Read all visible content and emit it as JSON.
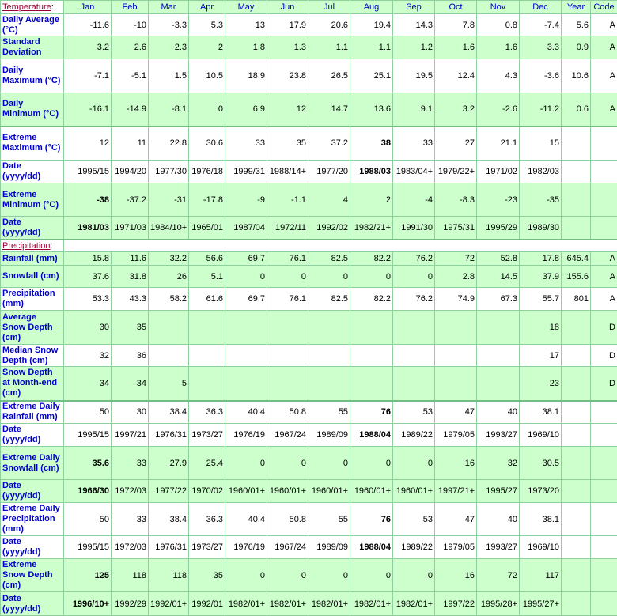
{
  "table": {
    "columns": [
      "Jan",
      "Feb",
      "Mar",
      "Apr",
      "May",
      "Jun",
      "Jul",
      "Aug",
      "Sep",
      "Oct",
      "Nov",
      "Dec",
      "Year",
      "Code"
    ],
    "sections": [
      {
        "title": "Temperature",
        "punctuation": ":",
        "rows": [
          {
            "label": "Daily Average (°C)",
            "shade": false,
            "values": [
              -11.6,
              -10,
              -3.3,
              5.3,
              13,
              17.9,
              20.6,
              19.4,
              14.3,
              7.8,
              0.8,
              -7.4,
              5.6,
              "A"
            ]
          },
          {
            "label": "Standard Deviation",
            "shade": true,
            "values": [
              3.2,
              2.6,
              2.3,
              2,
              1.8,
              1.3,
              1.1,
              1.1,
              1.2,
              1.6,
              1.6,
              3.3,
              0.9,
              "A"
            ]
          },
          {
            "label": "Daily Maximum (°C)",
            "shade": false,
            "values": [
              -7.1,
              -5.1,
              1.5,
              10.5,
              18.9,
              23.8,
              26.5,
              25.1,
              19.5,
              12.4,
              4.3,
              -3.6,
              10.6,
              "A"
            ]
          },
          {
            "label": "Daily Minimum (°C)",
            "shade": true,
            "values": [
              -16.1,
              -14.9,
              -8.1,
              0,
              6.9,
              12,
              14.7,
              13.6,
              9.1,
              3.2,
              -2.6,
              -11.2,
              0.6,
              "A"
            ]
          },
          {
            "label": "Extreme Maximum (°C)",
            "shade": false,
            "bold": 7,
            "values": [
              12,
              11,
              22.8,
              30.6,
              33,
              35,
              37.2,
              38,
              33,
              27,
              21.1,
              15,
              null,
              null
            ]
          },
          {
            "label": "Date (yyyy/dd)",
            "shade": false,
            "bold": 7,
            "values": [
              "1995/15",
              "1994/20",
              "1977/30",
              "1976/18",
              "1999/31",
              "1988/14+",
              "1977/20",
              "1988/03",
              "1983/04+",
              "1979/22+",
              "1971/02",
              "1982/03",
              null,
              null
            ]
          },
          {
            "label": "Extreme Minimum (°C)",
            "shade": true,
            "bold": 0,
            "values": [
              -38,
              -37.2,
              -31,
              -17.8,
              -9,
              -1.1,
              4,
              2,
              -4,
              -8.3,
              -23,
              -35,
              null,
              null
            ]
          },
          {
            "label": "Date (yyyy/dd)",
            "shade": true,
            "bold": 0,
            "values": [
              "1981/03",
              "1971/03",
              "1984/10+",
              "1965/01",
              "1987/04",
              "1972/11",
              "1992/02",
              "1982/21+",
              "1991/30",
              "1975/31",
              "1995/29",
              "1989/30",
              null,
              null
            ]
          }
        ]
      },
      {
        "title": "Precipitation",
        "punctuation": ":",
        "rows": [
          {
            "label": "Rainfall (mm)",
            "shade": true,
            "values": [
              15.8,
              11.6,
              32.2,
              56.6,
              69.7,
              76.1,
              82.5,
              82.2,
              76.2,
              72,
              52.8,
              17.8,
              645.4,
              "A"
            ]
          },
          {
            "label": "Snowfall (cm)",
            "shade": true,
            "values": [
              37.6,
              31.8,
              26,
              5.1,
              0,
              0,
              0,
              0,
              0,
              2.8,
              14.5,
              37.9,
              155.6,
              "A"
            ]
          },
          {
            "label": "Precipitation (mm)",
            "shade": false,
            "values": [
              53.3,
              43.3,
              58.2,
              61.6,
              69.7,
              76.1,
              82.5,
              82.2,
              76.2,
              74.9,
              67.3,
              55.7,
              801,
              "A"
            ]
          },
          {
            "label": "Average Snow Depth (cm)",
            "shade": true,
            "values": [
              30,
              35,
              null,
              null,
              null,
              null,
              null,
              null,
              null,
              null,
              null,
              18,
              null,
              "D"
            ]
          },
          {
            "label": "Median Snow Depth (cm)",
            "shade": false,
            "values": [
              32,
              36,
              null,
              null,
              null,
              null,
              null,
              null,
              null,
              null,
              null,
              17,
              null,
              "D"
            ]
          },
          {
            "label": "Snow Depth at Month-end (cm)",
            "shade": true,
            "values": [
              34,
              34,
              5,
              null,
              null,
              null,
              null,
              null,
              null,
              null,
              null,
              23,
              null,
              "D"
            ]
          },
          {
            "label": "Extreme Daily Rainfall (mm)",
            "shade": false,
            "bold": 7,
            "values": [
              50,
              30,
              38.4,
              36.3,
              40.4,
              50.8,
              55,
              76,
              53,
              47,
              40,
              38.1,
              null,
              null
            ]
          },
          {
            "label": "Date (yyyy/dd)",
            "shade": false,
            "bold": 7,
            "values": [
              "1995/15",
              "1997/21",
              "1976/31",
              "1973/27",
              "1976/19",
              "1967/24",
              "1989/09",
              "1988/04",
              "1989/22",
              "1979/05",
              "1993/27",
              "1969/10",
              null,
              null
            ]
          },
          {
            "label": "Extreme Daily Snowfall (cm)",
            "shade": true,
            "bold": 0,
            "values": [
              35.6,
              33,
              27.9,
              25.4,
              0,
              0,
              0,
              0,
              0,
              16,
              32,
              30.5,
              null,
              null
            ]
          },
          {
            "label": "Date (yyyy/dd)",
            "shade": true,
            "bold": 0,
            "values": [
              "1966/30",
              "1972/03",
              "1977/22",
              "1970/02",
              "1960/01+",
              "1960/01+",
              "1960/01+",
              "1960/01+",
              "1960/01+",
              "1997/21+",
              "1995/27",
              "1973/20",
              null,
              null
            ]
          },
          {
            "label": "Extreme Daily Precipitation (mm)",
            "shade": false,
            "bold": 7,
            "values": [
              50,
              33,
              38.4,
              36.3,
              40.4,
              50.8,
              55,
              76,
              53,
              47,
              40,
              38.1,
              null,
              null
            ]
          },
          {
            "label": "Date (yyyy/dd)",
            "shade": false,
            "bold": 7,
            "values": [
              "1995/15",
              "1972/03",
              "1976/31",
              "1973/27",
              "1976/19",
              "1967/24",
              "1989/09",
              "1988/04",
              "1989/22",
              "1979/05",
              "1993/27",
              "1969/10",
              null,
              null
            ]
          },
          {
            "label": "Extreme Snow Depth (cm)",
            "shade": true,
            "bold": 0,
            "values": [
              125,
              118,
              118,
              35,
              0,
              0,
              0,
              0,
              0,
              16,
              72,
              117,
              null,
              null
            ]
          },
          {
            "label": "Date (yyyy/dd)",
            "shade": true,
            "bold": 0,
            "values": [
              "1996/10+",
              "1992/29",
              "1992/01+",
              "1992/01",
              "1982/01+",
              "1982/01+",
              "1982/01+",
              "1982/01+",
              "1982/01+",
              "1997/22",
              "1995/28+",
              "1995/27+",
              null,
              null
            ]
          }
        ]
      }
    ]
  }
}
